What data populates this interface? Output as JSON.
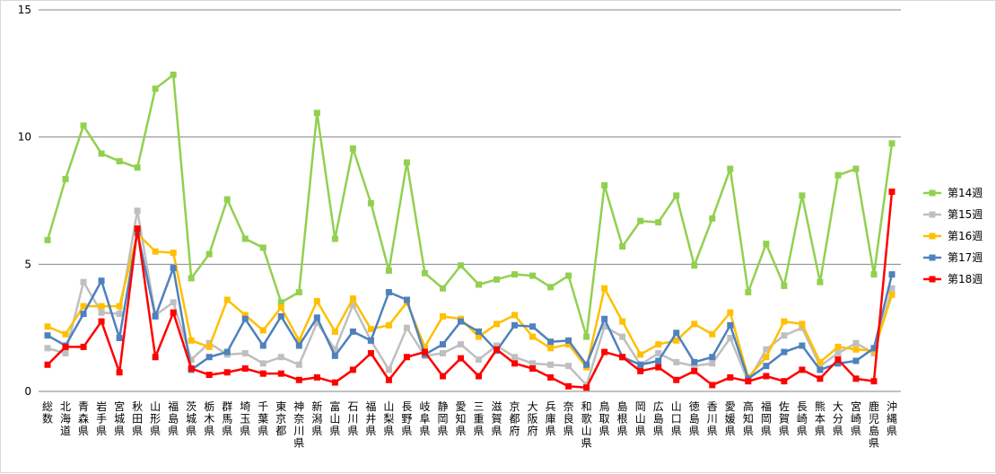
{
  "chart_data": {
    "type": "line",
    "title": "",
    "xlabel": "",
    "ylabel": "",
    "ylim": [
      0,
      15
    ],
    "yticks": [
      0,
      5,
      10,
      15
    ],
    "grid": true,
    "legend_position": "right",
    "categories": [
      "総数",
      "北海道",
      "青森県",
      "岩手県",
      "宮城県",
      "秋田県",
      "山形県",
      "福島県",
      "茨城県",
      "栃木県",
      "群馬県",
      "埼玉県",
      "千葉県",
      "東京都",
      "神奈川県",
      "新潟県",
      "富山県",
      "石川県",
      "福井県",
      "山梨県",
      "長野県",
      "岐阜県",
      "静岡県",
      "愛知県",
      "三重県",
      "滋賀県",
      "京都府",
      "大阪府",
      "兵庫県",
      "奈良県",
      "和歌山県",
      "鳥取県",
      "島根県",
      "岡山県",
      "広島県",
      "山口県",
      "徳島県",
      "香川県",
      "愛媛県",
      "高知県",
      "福岡県",
      "佐賀県",
      "長崎県",
      "熊本県",
      "大分県",
      "宮崎県",
      "鹿児島県",
      "沖縄県"
    ],
    "series": [
      {
        "name": "第14週",
        "color": "#92d050",
        "values": [
          5.95,
          8.35,
          10.45,
          9.35,
          9.05,
          8.8,
          11.9,
          12.45,
          4.45,
          5.4,
          7.55,
          6.0,
          5.65,
          3.5,
          3.9,
          10.95,
          6.0,
          9.55,
          7.4,
          4.75,
          9.0,
          4.65,
          4.05,
          4.95,
          4.2,
          4.4,
          4.6,
          4.55,
          4.1,
          4.55,
          2.15,
          8.1,
          5.7,
          6.7,
          6.65,
          7.7,
          4.95,
          6.8,
          8.75,
          3.9,
          5.8,
          4.15,
          7.7,
          4.3,
          8.5,
          8.75,
          4.6,
          9.75
        ]
      },
      {
        "name": "第15週",
        "color": "#bfbfbf",
        "values": [
          1.7,
          1.5,
          4.3,
          3.1,
          3.05,
          7.1,
          3.0,
          3.5,
          1.25,
          1.9,
          1.45,
          1.5,
          1.1,
          1.35,
          1.05,
          2.7,
          1.65,
          3.4,
          2.0,
          0.85,
          2.5,
          1.4,
          1.5,
          1.85,
          1.25,
          1.8,
          1.35,
          1.1,
          1.05,
          1.0,
          0.25,
          2.55,
          2.15,
          1.05,
          1.5,
          1.15,
          1.0,
          1.1,
          2.1,
          0.4,
          1.65,
          2.2,
          2.5,
          1.0,
          1.5,
          1.9,
          1.5,
          4.05
        ]
      },
      {
        "name": "第16週",
        "color": "#ffc000",
        "values": [
          2.55,
          2.25,
          3.35,
          3.35,
          3.35,
          6.2,
          5.5,
          5.45,
          2.0,
          1.75,
          3.6,
          3.0,
          2.4,
          3.3,
          2.0,
          3.55,
          2.35,
          3.65,
          2.45,
          2.6,
          3.5,
          1.75,
          2.95,
          2.85,
          2.15,
          2.65,
          3.0,
          2.15,
          1.7,
          1.85,
          0.95,
          4.05,
          2.75,
          1.45,
          1.85,
          2.0,
          2.65,
          2.25,
          3.1,
          0.55,
          1.35,
          2.75,
          2.65,
          1.15,
          1.75,
          1.65,
          1.6,
          3.8
        ]
      },
      {
        "name": "第17週",
        "color": "#4f81bd",
        "values": [
          2.2,
          1.8,
          3.05,
          4.35,
          2.1,
          6.25,
          2.95,
          4.85,
          0.85,
          1.35,
          1.55,
          2.85,
          1.8,
          2.95,
          1.8,
          2.9,
          1.4,
          2.35,
          2.0,
          3.9,
          3.6,
          1.45,
          1.85,
          2.75,
          2.35,
          1.6,
          2.6,
          2.55,
          1.95,
          2.0,
          1.05,
          2.85,
          1.35,
          1.05,
          1.2,
          2.3,
          1.15,
          1.35,
          2.6,
          0.5,
          1.0,
          1.55,
          1.8,
          0.85,
          1.1,
          1.2,
          1.7,
          4.6
        ]
      },
      {
        "name": "第18週",
        "color": "#ff0000",
        "values": [
          1.05,
          1.75,
          1.75,
          2.75,
          0.75,
          6.4,
          1.35,
          3.1,
          0.9,
          0.65,
          0.75,
          0.9,
          0.7,
          0.7,
          0.45,
          0.55,
          0.35,
          0.85,
          1.5,
          0.45,
          1.35,
          1.55,
          0.6,
          1.3,
          0.6,
          1.65,
          1.1,
          0.9,
          0.55,
          0.2,
          0.15,
          1.55,
          1.35,
          0.8,
          0.95,
          0.45,
          0.8,
          0.25,
          0.55,
          0.4,
          0.6,
          0.4,
          0.85,
          0.5,
          1.25,
          0.5,
          0.4,
          7.85
        ]
      }
    ]
  }
}
